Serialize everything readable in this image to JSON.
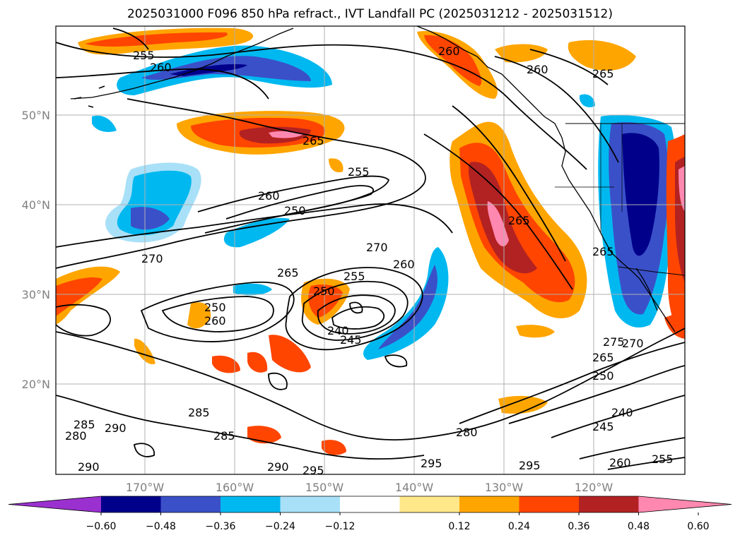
{
  "title": "2025031000 F096 850 hPa refract., IVT Landfall PC (2025031212 - 2025031512)",
  "map": {
    "lat_labels": [
      "50°N",
      "40°N",
      "30°N",
      "20°N"
    ],
    "lon_labels": [
      "170°W",
      "160°W",
      "150°W",
      "140°W",
      "130°W",
      "120°W"
    ],
    "contour_labels": [
      "255",
      "260",
      "265",
      "255",
      "260",
      "250",
      "270",
      "270",
      "265",
      "255",
      "260",
      "250",
      "240",
      "245",
      "250",
      "260",
      "265",
      "260",
      "265",
      "275",
      "270",
      "265",
      "250",
      "245",
      "240",
      "285",
      "290",
      "280",
      "285",
      "285",
      "280",
      "290",
      "290",
      "295",
      "295",
      "295",
      "260",
      "255",
      "260",
      "265"
    ]
  },
  "colorbar": {
    "ticks": [
      "−0.60",
      "−0.48",
      "−0.36",
      "−0.24",
      "−0.12",
      "0.12",
      "0.24",
      "0.36",
      "0.48",
      "0.60"
    ],
    "colors": [
      "#9b30d0",
      "#00008b",
      "#3a50c8",
      "#00b8f0",
      "#a8e0f8",
      "#ffffff",
      "#ffe88a",
      "#ffa500",
      "#ff4500",
      "#b22222",
      "#ff88b0"
    ]
  }
}
